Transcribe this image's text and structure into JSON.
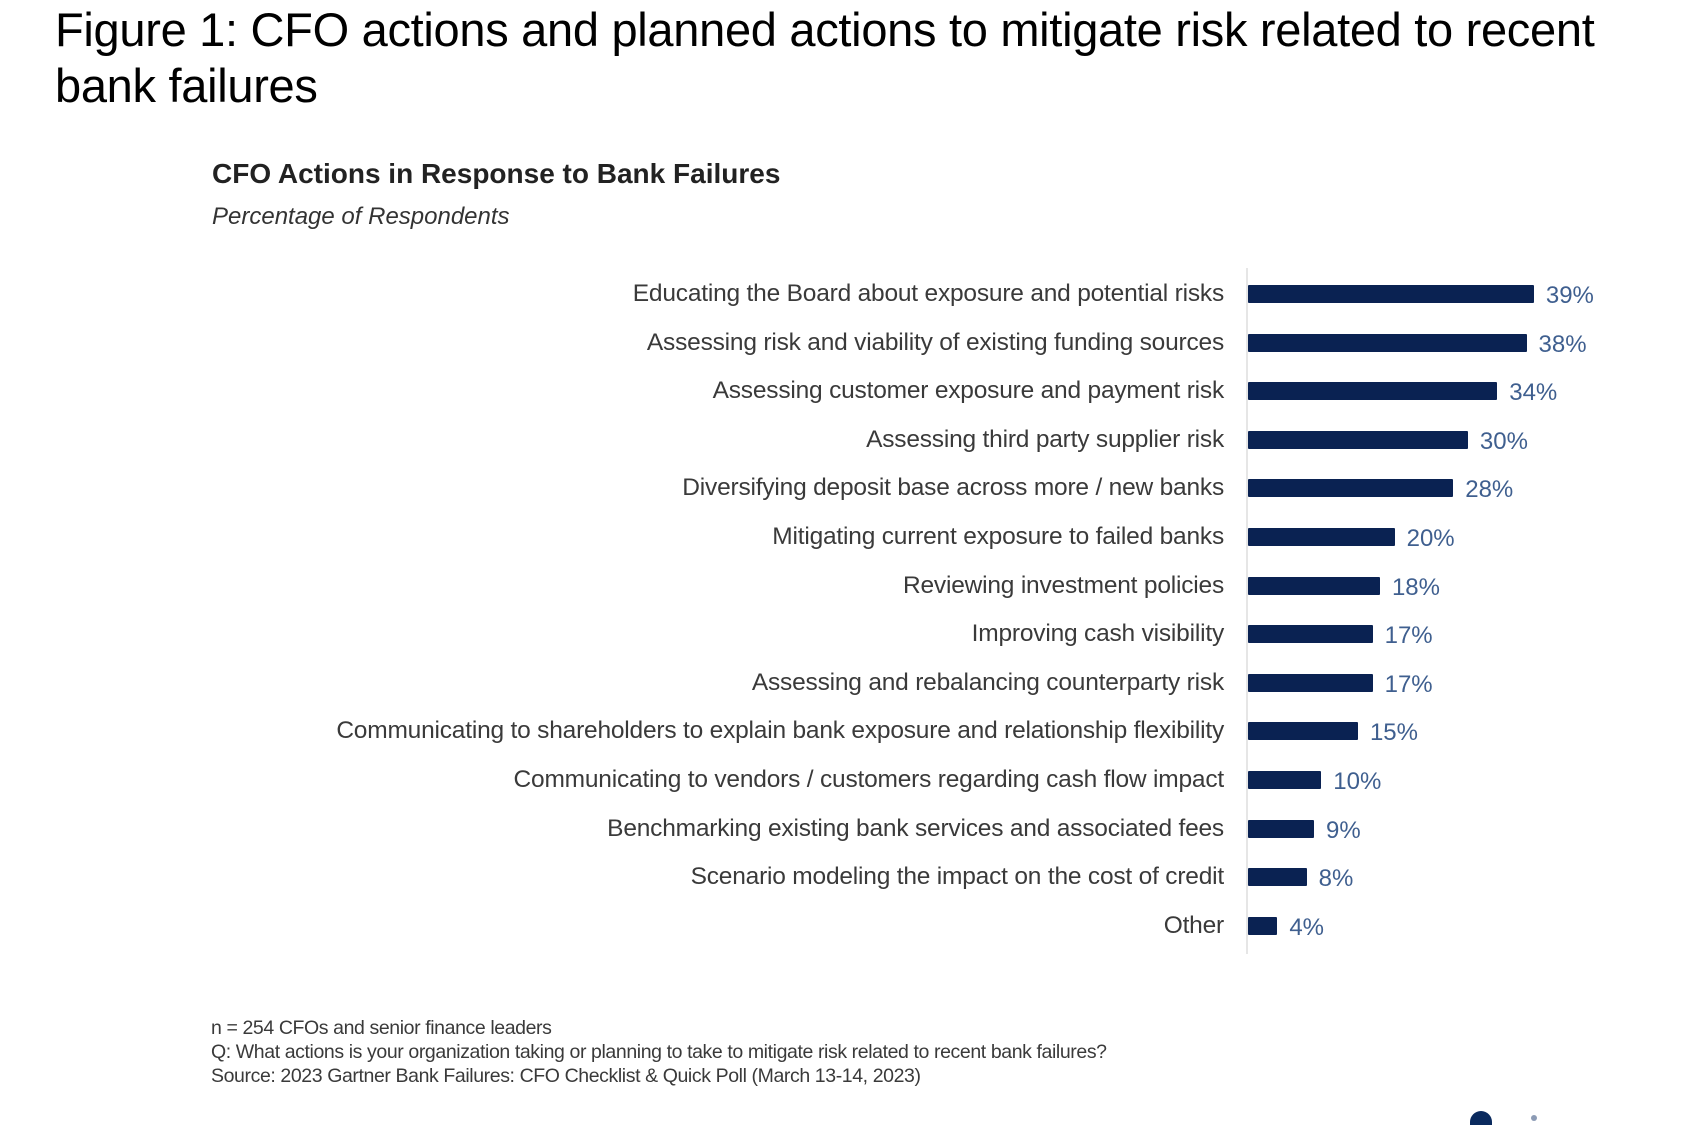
{
  "figure": {
    "title": "Figure 1: CFO actions and planned actions to mitigate risk related to recent bank failures"
  },
  "chart_data": {
    "type": "bar",
    "orientation": "horizontal",
    "title": "CFO Actions in Response to Bank Failures",
    "subtitle": "Percentage of Respondents",
    "xlabel": "",
    "ylabel": "",
    "xlim": [
      0,
      40
    ],
    "grid": false,
    "legend": null,
    "bar_color": "#0a2252",
    "value_label_color": "#3f5f8f",
    "categories": [
      "Educating the Board about exposure and potential risks",
      "Assessing risk and viability of existing funding sources",
      "Assessing customer exposure and payment risk",
      "Assessing third party supplier risk",
      "Diversifying deposit base across more / new banks",
      "Mitigating current exposure to failed banks",
      "Reviewing investment policies",
      "Improving cash visibility",
      "Assessing and rebalancing counterparty risk",
      "Communicating to shareholders to explain bank exposure and relationship flexibility",
      "Communicating to vendors / customers regarding cash flow impact",
      "Benchmarking existing bank services and associated fees",
      "Scenario modeling the impact on the cost of credit",
      "Other"
    ],
    "values": [
      39,
      38,
      34,
      30,
      28,
      20,
      18,
      17,
      17,
      15,
      10,
      9,
      8,
      4
    ],
    "value_labels": [
      "39%",
      "38%",
      "34%",
      "30%",
      "28%",
      "20%",
      "18%",
      "17%",
      "17%",
      "15%",
      "10%",
      "9%",
      "8%",
      "4%"
    ],
    "unit": "%"
  },
  "footnotes": {
    "sample": "n = 254 CFOs and senior finance leaders",
    "question": "Q: What actions is your organization taking or planning to take to mitigate risk related to recent bank failures?",
    "source": "Source: 2023 Gartner Bank Failures: CFO Checklist & Quick Poll (March 13-14, 2023)"
  }
}
